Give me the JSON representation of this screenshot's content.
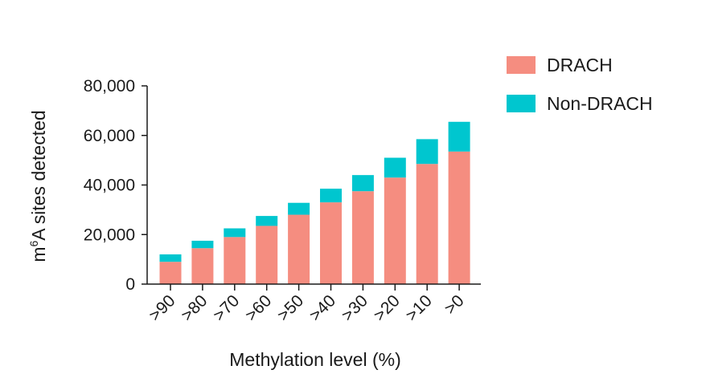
{
  "chart_data": {
    "type": "bar",
    "stacked": true,
    "categories": [
      ">90",
      ">80",
      ">70",
      ">60",
      ">50",
      ">40",
      ">30",
      ">20",
      ">10",
      ">0"
    ],
    "series": [
      {
        "name": "DRACH",
        "color": "#f58d80",
        "values": [
          9000,
          14500,
          19000,
          23500,
          28000,
          33000,
          37500,
          43000,
          48500,
          53500
        ]
      },
      {
        "name": "Non-DRACH",
        "color": "#00c6cf",
        "values": [
          3000,
          3000,
          3500,
          4000,
          4800,
          5500,
          6500,
          8000,
          10000,
          12000
        ]
      }
    ],
    "xlabel": "Methylation level (%)",
    "ylabel_main": "m",
    "ylabel_sup": "6",
    "ylabel_rest": "A sites detected",
    "ylim": [
      0,
      80000
    ],
    "yticks": [
      0,
      20000,
      40000,
      60000,
      80000
    ],
    "ytick_labels": [
      "0",
      "20,000",
      "40,000",
      "60,000",
      "80,000"
    ],
    "legend_position": "top-right",
    "grid": false
  }
}
